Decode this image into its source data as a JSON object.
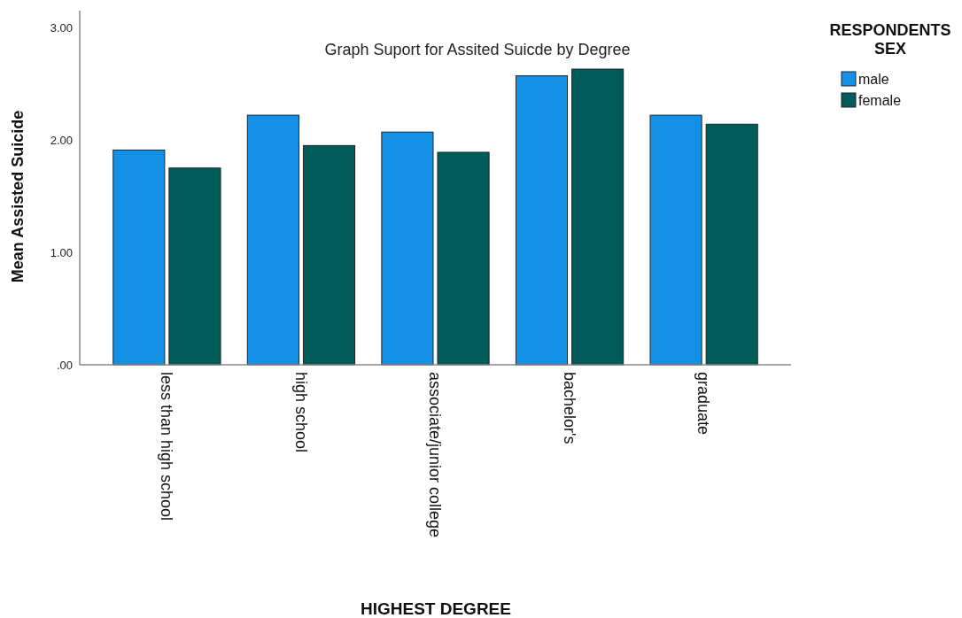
{
  "chart_data": {
    "type": "bar",
    "title": "Graph Suport for Assited Suicde by Degree",
    "xlabel": "HIGHEST DEGREE",
    "ylabel": "Mean Assisted Suicide",
    "legend_title": "RESPONDENTS SEX",
    "categories": [
      "less than high school",
      "high school",
      "associate/junior college",
      "bachelor's",
      "graduate"
    ],
    "series": [
      {
        "name": "male",
        "color": "#1490e6",
        "values": [
          1.91,
          2.22,
          2.07,
          2.57,
          2.22
        ]
      },
      {
        "name": "female",
        "color": "#005c5a",
        "values": [
          1.75,
          1.95,
          1.89,
          2.63,
          2.14
        ]
      }
    ],
    "ylim": [
      0,
      3.15
    ],
    "yticks": [
      {
        "value": 0,
        "label": ".00"
      },
      {
        "value": 1,
        "label": "1.00"
      },
      {
        "value": 2,
        "label": "2.00"
      },
      {
        "value": 3,
        "label": "3.00"
      }
    ],
    "grid": false,
    "legend": "right"
  }
}
